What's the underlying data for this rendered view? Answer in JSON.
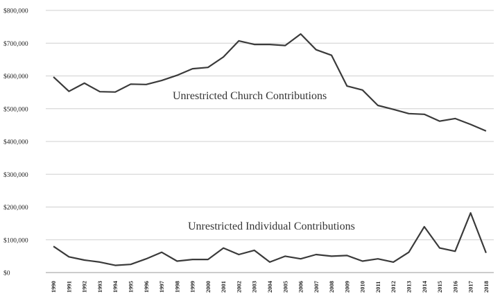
{
  "chart_data": {
    "type": "line",
    "title": "",
    "xlabel": "",
    "ylabel": "",
    "ylim": [
      0,
      800000
    ],
    "grid": true,
    "y_ticks": [
      {
        "value": 0,
        "label": "$0"
      },
      {
        "value": 100000,
        "label": "$100,000"
      },
      {
        "value": 200000,
        "label": "$200,000"
      },
      {
        "value": 300000,
        "label": "$300,000"
      },
      {
        "value": 400000,
        "label": "$400,000"
      },
      {
        "value": 500000,
        "label": "$500,000"
      },
      {
        "value": 600000,
        "label": "$600,000"
      },
      {
        "value": 700000,
        "label": "$700,000"
      },
      {
        "value": 800000,
        "label": "$800,000"
      }
    ],
    "categories": [
      "1990",
      "1991",
      "1992",
      "1993",
      "1994",
      "1995",
      "1996",
      "1997",
      "1998",
      "1999",
      "2000",
      "2001",
      "2002",
      "2003",
      "2004",
      "2005",
      "2006",
      "2007",
      "2008",
      "2009",
      "2010",
      "2011",
      "2012",
      "2013",
      "2014",
      "2015",
      "2016",
      "2017",
      "2018"
    ],
    "series": [
      {
        "name": "Unrestricted Church Contributions",
        "values": [
          597000,
          553000,
          578000,
          552000,
          551000,
          575000,
          574000,
          586000,
          602000,
          622000,
          626000,
          658000,
          707000,
          696000,
          696000,
          693000,
          728000,
          680000,
          663000,
          569000,
          557000,
          510000,
          498000,
          485000,
          483000,
          462000,
          470000,
          452000,
          432000
        ]
      },
      {
        "name": "Unrestricted Individual Contributions",
        "values": [
          80000,
          48000,
          38000,
          32000,
          22000,
          25000,
          42000,
          62000,
          35000,
          40000,
          40000,
          75000,
          55000,
          68000,
          32000,
          50000,
          42000,
          55000,
          50000,
          52000,
          35000,
          42000,
          32000,
          62000,
          140000,
          75000,
          65000,
          182000,
          60000
        ]
      }
    ]
  }
}
